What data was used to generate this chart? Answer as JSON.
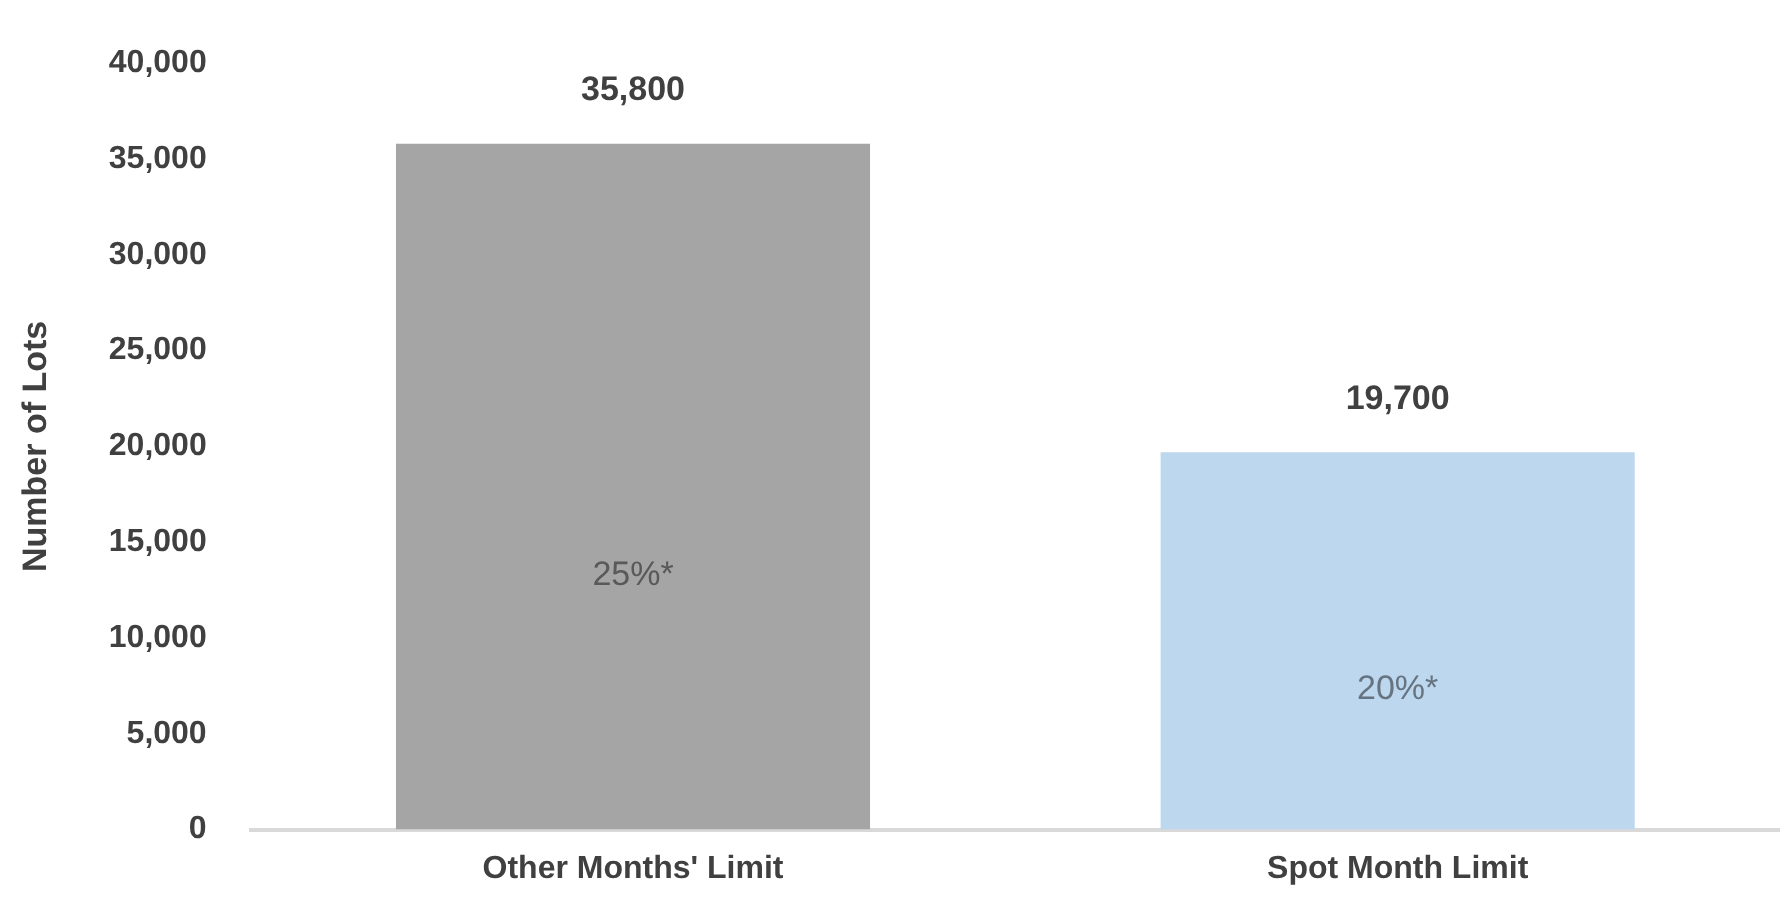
{
  "chart_data": {
    "type": "bar",
    "ylabel": "Number of Lots",
    "categories": [
      "Other Months' Limit",
      "Spot Month Limit"
    ],
    "values": [
      35800,
      19700
    ],
    "colors": [
      "#a5a5a5",
      "#bdd7ee"
    ],
    "value_labels": [
      "35,800",
      "19,700"
    ],
    "ylim": [
      0,
      40000
    ],
    "yticks": [
      {
        "value": 0,
        "label": "0"
      },
      {
        "value": 5000,
        "label": "5,000"
      },
      {
        "value": 10000,
        "label": "10,000"
      },
      {
        "value": 15000,
        "label": "15,000"
      },
      {
        "value": 20000,
        "label": "20,000"
      },
      {
        "value": 25000,
        "label": "25,000"
      },
      {
        "value": 30000,
        "label": "30,000"
      },
      {
        "value": 35000,
        "label": "35,000"
      },
      {
        "value": 40000,
        "label": "40,000"
      }
    ],
    "annotations": [
      "25%*",
      "20%*"
    ],
    "grid": false,
    "legend": false
  }
}
